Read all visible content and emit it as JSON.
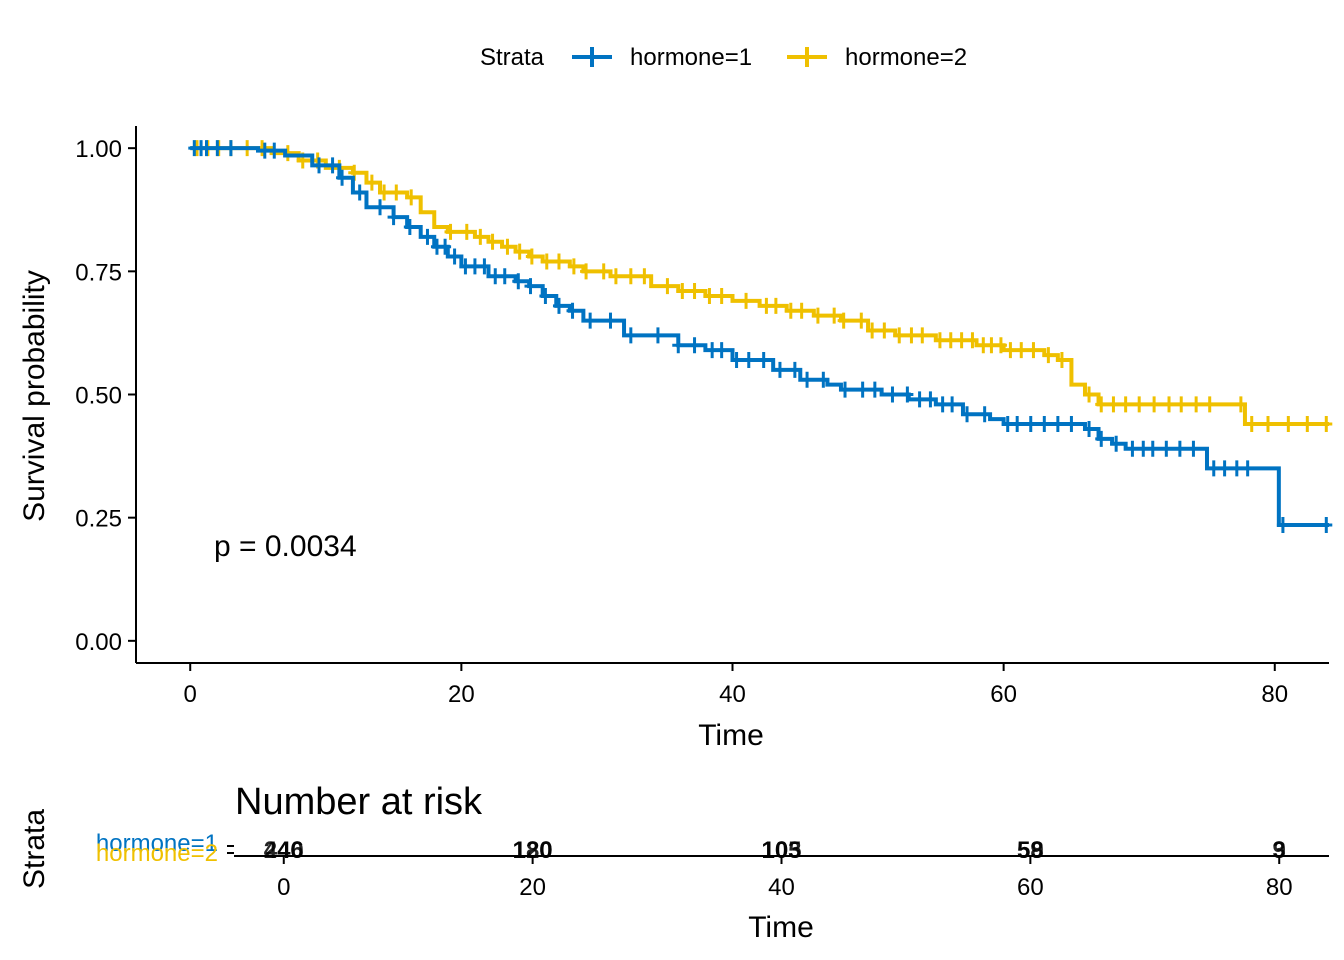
{
  "legend": {
    "title": "Strata",
    "items": [
      {
        "label": "hormone=1",
        "color": "#0073C2"
      },
      {
        "label": "hormone=2",
        "color": "#EFC000"
      }
    ]
  },
  "chart_data": [
    {
      "type": "line",
      "subtype": "kaplan-meier-step",
      "title": "",
      "xlabel": "Time",
      "ylabel": "Survival probability",
      "xlim": [
        -4,
        84
      ],
      "ylim": [
        -0.045,
        1.045
      ],
      "xticks": [
        "0",
        "20",
        "40",
        "60",
        "80"
      ],
      "yticks": [
        "0.00",
        "0.25",
        "0.50",
        "0.75",
        "1.00"
      ],
      "grid": false,
      "legend_position": "top",
      "annotation": "p = 0.0034",
      "series": [
        {
          "name": "hormone=1",
          "color": "#0073C2",
          "steps": [
            [
              0,
              1.0
            ],
            [
              5,
              0.995
            ],
            [
              7,
              0.985
            ],
            [
              9,
              0.965
            ],
            [
              11,
              0.94
            ],
            [
              12,
              0.91
            ],
            [
              13,
              0.88
            ],
            [
              15,
              0.86
            ],
            [
              16,
              0.84
            ],
            [
              17,
              0.82
            ],
            [
              18,
              0.8
            ],
            [
              19,
              0.78
            ],
            [
              20,
              0.76
            ],
            [
              22,
              0.74
            ],
            [
              24,
              0.73
            ],
            [
              25,
              0.72
            ],
            [
              26,
              0.7
            ],
            [
              27,
              0.68
            ],
            [
              28,
              0.67
            ],
            [
              29,
              0.65
            ],
            [
              32,
              0.62
            ],
            [
              36,
              0.6
            ],
            [
              38,
              0.59
            ],
            [
              40,
              0.57
            ],
            [
              43,
              0.55
            ],
            [
              45,
              0.53
            ],
            [
              47,
              0.52
            ],
            [
              48,
              0.51
            ],
            [
              51,
              0.5
            ],
            [
              53,
              0.49
            ],
            [
              55,
              0.48
            ],
            [
              57,
              0.46
            ],
            [
              59,
              0.45
            ],
            [
              60,
              0.44
            ],
            [
              66,
              0.43
            ],
            [
              67,
              0.41
            ],
            [
              68,
              0.4
            ],
            [
              69,
              0.39
            ],
            [
              75,
              0.35
            ],
            [
              80.3,
              0.235
            ],
            [
              84,
              0.235
            ]
          ],
          "censor_times": [
            0.3,
            0.8,
            1.2,
            2,
            3,
            5.5,
            6.2,
            9.5,
            10.5,
            11.2,
            12.5,
            14,
            15,
            16.2,
            17.5,
            18.2,
            18.8,
            19.5,
            20.3,
            21,
            21.7,
            22.5,
            23.2,
            24.2,
            25.1,
            26.2,
            27.2,
            28.2,
            29.5,
            31,
            32.5,
            34.5,
            36,
            37.2,
            38.5,
            39.2,
            40.3,
            41.2,
            42.3,
            43.5,
            44.6,
            45.5,
            46.7,
            48.3,
            49.6,
            50.5,
            51.8,
            52.9,
            53.8,
            54.6,
            55.5,
            56.2,
            57.3,
            58.6,
            60.3,
            61,
            62,
            63,
            64,
            65,
            66.3,
            67.2,
            68.3,
            69.5,
            70.3,
            71,
            72,
            73,
            74,
            75.5,
            76.3,
            77.2,
            78,
            80.6,
            83.8
          ]
        },
        {
          "name": "hormone=2",
          "color": "#EFC000",
          "steps": [
            [
              0,
              1.0
            ],
            [
              6,
              0.99
            ],
            [
              8,
              0.975
            ],
            [
              10,
              0.96
            ],
            [
              12,
              0.95
            ],
            [
              13,
              0.93
            ],
            [
              14,
              0.91
            ],
            [
              16,
              0.9
            ],
            [
              17,
              0.87
            ],
            [
              18,
              0.84
            ],
            [
              19,
              0.83
            ],
            [
              21,
              0.82
            ],
            [
              22,
              0.81
            ],
            [
              23,
              0.8
            ],
            [
              24,
              0.79
            ],
            [
              25,
              0.78
            ],
            [
              26,
              0.77
            ],
            [
              28,
              0.76
            ],
            [
              29,
              0.75
            ],
            [
              31,
              0.74
            ],
            [
              34,
              0.72
            ],
            [
              36,
              0.71
            ],
            [
              38,
              0.7
            ],
            [
              40,
              0.69
            ],
            [
              42,
              0.68
            ],
            [
              44,
              0.67
            ],
            [
              46,
              0.66
            ],
            [
              48,
              0.65
            ],
            [
              50,
              0.63
            ],
            [
              52,
              0.62
            ],
            [
              55,
              0.61
            ],
            [
              58,
              0.6
            ],
            [
              60,
              0.59
            ],
            [
              63,
              0.58
            ],
            [
              64,
              0.57
            ],
            [
              65,
              0.52
            ],
            [
              66,
              0.5
            ],
            [
              67,
              0.48
            ],
            [
              77.8,
              0.44
            ],
            [
              84,
              0.44
            ]
          ],
          "censor_times": [
            0.5,
            1.3,
            2.1,
            3,
            4.2,
            5.3,
            7.2,
            8.3,
            9.4,
            11,
            12.1,
            13.4,
            14.3,
            15.2,
            16.3,
            19.2,
            20.4,
            21.4,
            22.3,
            23.4,
            24.3,
            25.2,
            26.3,
            27.2,
            28.3,
            29.2,
            30.5,
            31.4,
            32.5,
            33.5,
            35.2,
            36.3,
            37.2,
            38.3,
            39.2,
            41,
            42.5,
            43.2,
            44.3,
            45.1,
            46.3,
            47.5,
            48.2,
            49.5,
            50.3,
            51.2,
            52.3,
            53.2,
            54,
            55.3,
            56.1,
            56.9,
            57.7,
            58.5,
            59.1,
            59.8,
            60.5,
            61.3,
            62.2,
            63.3,
            64.3,
            66.3,
            67.2,
            68.1,
            69,
            70,
            71.1,
            72.2,
            73.1,
            74.2,
            75.2,
            77.5,
            78.3,
            79.5,
            81,
            82.4,
            83.8
          ]
        }
      ]
    },
    {
      "type": "table",
      "title": "Number at risk",
      "xlabel": "Time",
      "ylabel": "Strata",
      "xticks": [
        "0",
        "20",
        "40",
        "60",
        "80"
      ],
      "rows": [
        {
          "name": "hormone=1",
          "color": "#0073C2",
          "values": [
            "440",
            "180",
            "105",
            "59",
            "3"
          ]
        },
        {
          "name": "hormone=2",
          "color": "#EFC000",
          "values": [
            "246",
            "120",
            "103",
            "58",
            "9"
          ]
        }
      ]
    }
  ]
}
